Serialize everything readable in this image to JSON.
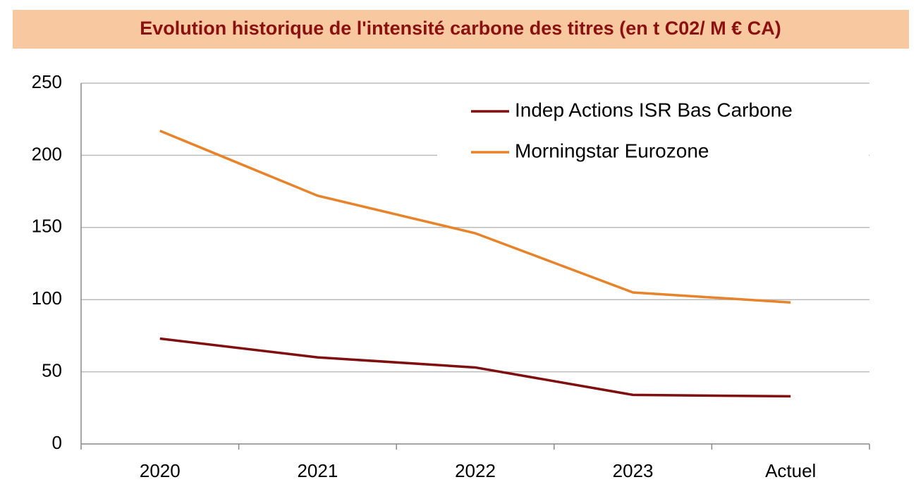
{
  "chart_data": {
    "type": "line",
    "title": "Evolution historique de l'intensité carbone des titres (en t C02/ M € CA)",
    "categories": [
      "2020",
      "2021",
      "2022",
      "2023",
      "Actuel"
    ],
    "series": [
      {
        "name": "Indep Actions ISR Bas Carbone",
        "color": "#7f0f0f",
        "values": [
          73,
          60,
          53,
          34,
          33
        ]
      },
      {
        "name": "Morningstar Eurozone",
        "color": "#e7832a",
        "values": [
          217,
          172,
          146,
          105,
          98
        ]
      }
    ],
    "ylim": [
      0,
      250
    ],
    "yticks": [
      0,
      50,
      100,
      150,
      200,
      250
    ],
    "grid": true,
    "legend": "top-right"
  }
}
